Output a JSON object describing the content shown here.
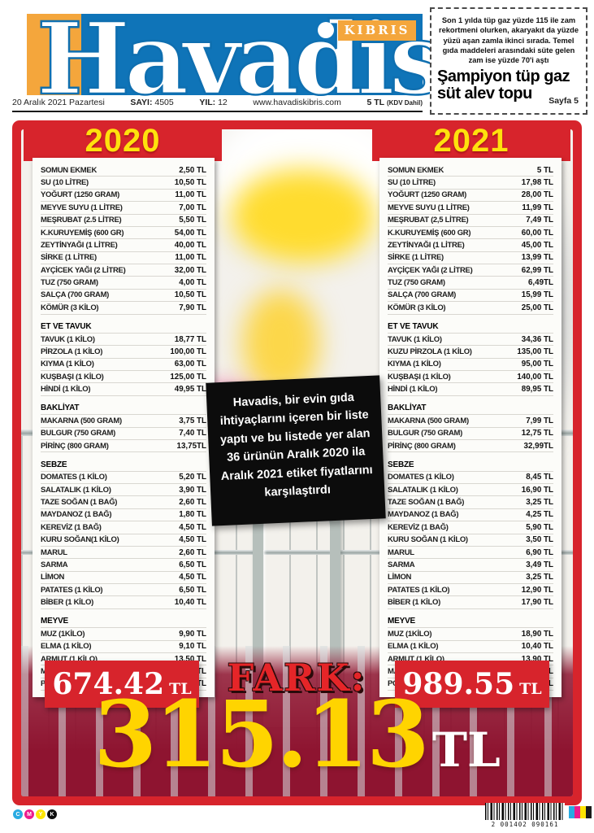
{
  "header": {
    "masthead": {
      "title": "Havadis",
      "region": "KIBRIS"
    },
    "dateline": {
      "date": "20 Aralık 2021 Pazartesi",
      "issue_label": "SAYI:",
      "issue": "4505",
      "year_label": "YIL:",
      "year": "12",
      "website": "www.havadiskibris.com",
      "price": "5 TL",
      "price_note": "(KDV Dahil)"
    },
    "teaser": {
      "summary": "Son 1 yılda tüp gaz yüzde 115 ile zam rekortmeni olurken, akaryakıt da yüzde yüzü aşan zamla ikinci sırada. Temel gıda maddeleri arasındaki süte gelen zam ise yüzde 70'i aştı",
      "headline": "Şampiyon tüp gaz süt alev topu",
      "page_ref": "Sayfa 5"
    }
  },
  "comparison": {
    "note": "Havadis, bir evin gıda ihtiyaçlarını içeren bir liste yaptı ve bu listede yer alan 36 ürünün Aralık 2020 ila Aralık 2021 etiket fiyatlarını karşılaştırdı",
    "fark_label": "FARK:",
    "difference": {
      "value": "315.13",
      "unit": "TL"
    },
    "y2020": {
      "title": "2020",
      "total": {
        "value": "674.42",
        "unit": "TL"
      },
      "sections": [
        {
          "header": "",
          "items": [
            {
              "label": "SOMUN EKMEK",
              "price": "2,50 TL"
            },
            {
              "label": "SU (10 LİTRE)",
              "price": "10,50 TL"
            },
            {
              "label": "YOĞURT (1250 GRAM)",
              "price": "11,00 TL"
            },
            {
              "label": "MEYVE SUYU (1 LİTRE)",
              "price": "7,00 TL"
            },
            {
              "label": "MEŞRUBAT (2.5 LİTRE)",
              "price": "5,50 TL"
            },
            {
              "label": "K.KURUYEMİŞ (600 GR)",
              "price": "54,00 TL"
            },
            {
              "label": "ZEYTİNYAĞI (1 LİTRE)",
              "price": "40,00 TL"
            },
            {
              "label": "SİRKE (1 LİTRE)",
              "price": "11,00 TL"
            },
            {
              "label": "AYÇİCEK YAĞI (2 LİTRE)",
              "price": "32,00 TL"
            },
            {
              "label": "TUZ (750 GRAM)",
              "price": "4,00 TL"
            },
            {
              "label": "SALÇA (700 GRAM)",
              "price": "10,50 TL"
            },
            {
              "label": "KÖMÜR (3 KİLO)",
              "price": "7,90 TL"
            }
          ]
        },
        {
          "header": "ET VE TAVUK",
          "items": [
            {
              "label": "TAVUK (1 KİLO)",
              "price": "18,77 TL"
            },
            {
              "label": "PİRZOLA (1 KİLO)",
              "price": "100,00 TL"
            },
            {
              "label": "KIYMA (1 KİLO)",
              "price": "63,00 TL"
            },
            {
              "label": "KUŞBAŞI (1 KİLO)",
              "price": "125,00 TL"
            },
            {
              "label": "HİNDİ (1 KİLO)",
              "price": "49,95 TL"
            }
          ]
        },
        {
          "header": "BAKLİYAT",
          "items": [
            {
              "label": "MAKARNA (500 GRAM)",
              "price": "3,75 TL"
            },
            {
              "label": "BULGUR (750 GRAM)",
              "price": "7,40 TL"
            },
            {
              "label": "PİRİNÇ (800 GRAM)",
              "price": "13,75TL"
            }
          ]
        },
        {
          "header": "SEBZE",
          "items": [
            {
              "label": "DOMATES (1 KİLO)",
              "price": "5,20 TL"
            },
            {
              "label": "SALATALIK (1 KİLO)",
              "price": "3,90 TL"
            },
            {
              "label": "TAZE SOĞAN (1 BAĞ)",
              "price": "2,60 TL"
            },
            {
              "label": "MAYDANOZ (1 BAĞ)",
              "price": "1,80 TL"
            },
            {
              "label": "KEREVİZ (1 BAĞ)",
              "price": "4,50 TL"
            },
            {
              "label": "KURU SOĞAN(1 KİLO)",
              "price": "4,50 TL"
            },
            {
              "label": "MARUL",
              "price": "2,60 TL"
            },
            {
              "label": "SARMA",
              "price": "6,50 TL"
            },
            {
              "label": "LİMON",
              "price": "4,50 TL"
            },
            {
              "label": "PATATES (1 KİLO)",
              "price": "6,50 TL"
            },
            {
              "label": "BİBER (1 KİLO)",
              "price": "10,40 TL"
            }
          ]
        },
        {
          "header": "MEYVE",
          "items": [
            {
              "label": "MUZ (1KİLO)",
              "price": "9,90 TL"
            },
            {
              "label": "ELMA (1 KİLO)",
              "price": "9,10 TL"
            },
            {
              "label": "ARMUT (1 KİLO)",
              "price": "13,50 TL"
            },
            {
              "label": "MANDALİNA (1 KİLO)",
              "price": "4,90 TL"
            },
            {
              "label": "PORTAKAL (1 KİLO)",
              "price": "6,50 TL"
            }
          ]
        }
      ]
    },
    "y2021": {
      "title": "2021",
      "total": {
        "value": "989.55",
        "unit": "TL"
      },
      "sections": [
        {
          "header": "",
          "items": [
            {
              "label": "SOMUN EKMEK",
              "price": "5 TL"
            },
            {
              "label": "SU (10 LİTRE)",
              "price": "17,98 TL"
            },
            {
              "label": "YOĞURT (1250 GRAM)",
              "price": "28,00 TL"
            },
            {
              "label": "MEYVE SUYU (1 LİTRE)",
              "price": "11,99 TL"
            },
            {
              "label": "MEŞRUBAT (2,5 LİTRE)",
              "price": "7,49 TL"
            },
            {
              "label": "K.KURUYEMİŞ (600 GR)",
              "price": "60,00 TL"
            },
            {
              "label": "ZEYTİNYAĞI (1 LİTRE)",
              "price": "45,00 TL"
            },
            {
              "label": "SİRKE (1 LİTRE)",
              "price": "13,99 TL"
            },
            {
              "label": "AYÇİÇEK YAĞI (2 LİTRE)",
              "price": "62,99 TL"
            },
            {
              "label": "TUZ (750 GRAM)",
              "price": "6,49TL"
            },
            {
              "label": "SALÇA (700 GRAM)",
              "price": "15,99 TL"
            },
            {
              "label": "KÖMÜR (3 KİLO)",
              "price": "25,00 TL"
            }
          ]
        },
        {
          "header": "ET VE TAVUK",
          "items": [
            {
              "label": "TAVUK (1 KİLO)",
              "price": "34,36 TL"
            },
            {
              "label": "KUZU PİRZOLA (1 KİLO)",
              "price": "135,00 TL"
            },
            {
              "label": "KIYMA (1 KİLO)",
              "price": "95,00 TL"
            },
            {
              "label": "KUŞBAŞI (1 KİLO)",
              "price": "140,00 TL"
            },
            {
              "label": "HİNDİ (1 KİLO)",
              "price": "89,95 TL"
            }
          ]
        },
        {
          "header": "BAKLİYAT",
          "items": [
            {
              "label": "MAKARNA (500 GRAM)",
              "price": "7,99 TL"
            },
            {
              "label": "BULGUR (750 GRAM)",
              "price": "12,75 TL"
            },
            {
              "label": "PİRİNÇ (800 GRAM)",
              "price": "32,99TL"
            }
          ]
        },
        {
          "header": "SEBZE",
          "items": [
            {
              "label": "DOMATES (1 KİLO)",
              "price": "8,45 TL"
            },
            {
              "label": "SALATALIK (1 KİLO)",
              "price": "16,90 TL"
            },
            {
              "label": "TAZE SOĞAN (1 BAĞ)",
              "price": "3,25 TL"
            },
            {
              "label": "MAYDANOZ (1 BAĞ)",
              "price": "4,25 TL"
            },
            {
              "label": "KEREVİZ (1 BAĞ)",
              "price": "5,90 TL"
            },
            {
              "label": "KURU SOĞAN (1 KİLO)",
              "price": "3,50 TL"
            },
            {
              "label": "MARUL",
              "price": "6,90 TL"
            },
            {
              "label": "SARMA",
              "price": "3,49 TL"
            },
            {
              "label": "LİMON",
              "price": "3,25 TL"
            },
            {
              "label": "PATATES (1 KİLO)",
              "price": "12,90 TL"
            },
            {
              "label": "BİBER (1 KİLO)",
              "price": "17,90 TL"
            }
          ]
        },
        {
          "header": "MEYVE",
          "items": [
            {
              "label": "MUZ (1KİLO)",
              "price": "18,90 TL"
            },
            {
              "label": "ELMA (1 KİLO)",
              "price": "10,40 TL"
            },
            {
              "label": "ARMUT (1 KİLO)",
              "price": "13,90 TL"
            },
            {
              "label": "MANDALİNA (1 KİLO)",
              "price": "5,85 TL"
            },
            {
              "label": "PORTAKAL (1 KİLO)",
              "price": "5,85 TL"
            }
          ]
        }
      ]
    }
  },
  "footer": {
    "print_marks": [
      "C",
      "M",
      "Y",
      "K"
    ],
    "barcode_digits": "2 001402 090161"
  },
  "colors": {
    "brand_blue": "#0f74b8",
    "brand_orange": "#f4a63c",
    "frame_red": "#d7242c",
    "accent_yellow": "#ffe10d",
    "diff_yellow": "#ffd400"
  }
}
